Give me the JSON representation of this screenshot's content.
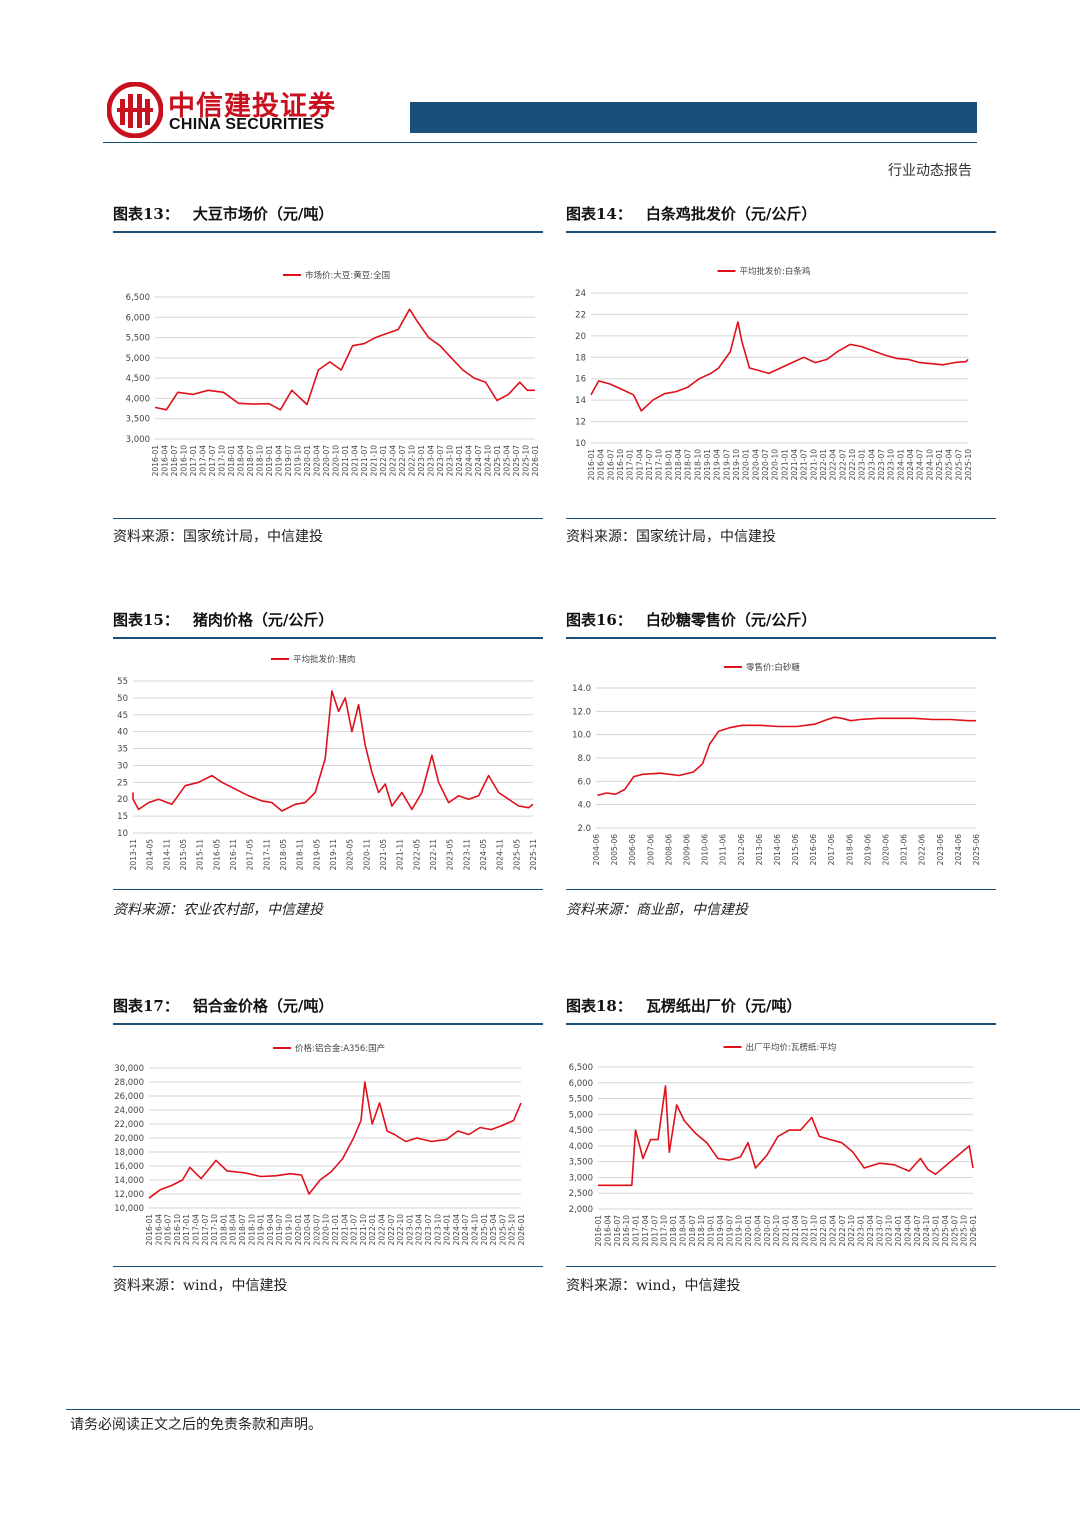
{
  "header": {
    "brand_cn": "中信建投证券",
    "brand_en": "CHINA SECURITIES",
    "report_type": "行业动态报告"
  },
  "colors": {
    "brand_red": "#c8101e",
    "brand_blue": "#1a4f7a",
    "series_red": "#e0101a"
  },
  "panels": [
    {
      "label": "图表13：",
      "title": "大豆市场价（元/吨）",
      "source": "资料来源：国家统计局，中信建投"
    },
    {
      "label": "图表14：",
      "title": "白条鸡批发价（元/公斤）",
      "source": "资料来源：国家统计局，中信建投"
    },
    {
      "label": "图表15：",
      "title": "猪肉价格（元/公斤）",
      "source": "资料来源：农业农村部，中信建投"
    },
    {
      "label": "图表16：",
      "title": "白砂糖零售价（元/公斤）",
      "source": "资料来源：商业部，中信建投"
    },
    {
      "label": "图表17：",
      "title": "铝合金价格（元/吨）",
      "source": "资料来源：wind，中信建投"
    },
    {
      "label": "图表18：",
      "title": "瓦楞纸出厂价（元/吨）",
      "source": "资料来源：wind，中信建投"
    }
  ],
  "chart_data": [
    {
      "type": "line",
      "title": "大豆市场价（元/吨）",
      "series": [
        {
          "name": "市场价:大豆:黄豆:全国",
          "x": [
            2016.0,
            2016.3,
            2016.6,
            2017.0,
            2017.4,
            2017.8,
            2018.2,
            2018.6,
            2019.0,
            2019.3,
            2019.6,
            2020.0,
            2020.3,
            2020.6,
            2020.9,
            2021.2,
            2021.5,
            2021.8,
            2022.1,
            2022.4,
            2022.7,
            2022.9,
            2023.2,
            2023.5,
            2023.8,
            2024.1,
            2024.4,
            2024.7,
            2025.0,
            2025.3,
            2025.6,
            2025.8,
            2026.0
          ],
          "values": [
            3780,
            3720,
            4150,
            4100,
            4200,
            4150,
            3880,
            3860,
            3870,
            3720,
            4200,
            3850,
            4700,
            4900,
            4700,
            5300,
            5350,
            5500,
            5600,
            5700,
            6200,
            5900,
            5500,
            5300,
            5000,
            4700,
            4500,
            4400,
            3950,
            4100,
            4400,
            4200,
            4200
          ]
        }
      ],
      "ylim": [
        3000,
        6500
      ],
      "yticks": [
        "3,000",
        "3,500",
        "4,000",
        "4,500",
        "5,000",
        "5,500",
        "6,000",
        "6,500"
      ],
      "categories": [
        "2016-01",
        "2016-04",
        "2016-07",
        "2016-10",
        "2017-01",
        "2017-04",
        "2017-07",
        "2017-10",
        "2018-01",
        "2018-04",
        "2018-07",
        "2018-10",
        "2019-01",
        "2019-04",
        "2019-07",
        "2019-10",
        "2020-01",
        "2020-04",
        "2020-07",
        "2020-10",
        "2021-01",
        "2021-04",
        "2021-07",
        "2021-10",
        "2022-01",
        "2022-04",
        "2022-07",
        "2022-10",
        "2023-01",
        "2023-04",
        "2023-07",
        "2023-10",
        "2024-01",
        "2024-04",
        "2024-07",
        "2024-10",
        "2025-01",
        "2025-04",
        "2025-07",
        "2025-10",
        "2026-01"
      ]
    },
    {
      "type": "line",
      "title": "白条鸡批发价（元/公斤）",
      "series": [
        {
          "name": "平均批发价:白条鸡",
          "x": [
            2016.0,
            2016.2,
            2016.5,
            2016.8,
            2017.1,
            2017.3,
            2017.6,
            2017.9,
            2018.2,
            2018.5,
            2018.8,
            2019.1,
            2019.3,
            2019.6,
            2019.8,
            2019.9,
            2020.1,
            2020.3,
            2020.6,
            2020.9,
            2021.2,
            2021.5,
            2021.8,
            2022.1,
            2022.4,
            2022.7,
            2023.0,
            2023.3,
            2023.6,
            2023.9,
            2024.2,
            2024.5,
            2024.8,
            2025.1,
            2025.4,
            2025.7,
            2026.0
          ],
          "values": [
            14.5,
            15.8,
            15.5,
            15.0,
            14.5,
            13.0,
            14.0,
            14.6,
            14.8,
            15.2,
            16.0,
            16.5,
            17.0,
            18.5,
            21.3,
            19.5,
            17.0,
            16.8,
            16.5,
            17.0,
            17.5,
            18.0,
            17.5,
            17.8,
            18.6,
            19.2,
            19.0,
            18.6,
            18.2,
            17.9,
            17.8,
            17.5,
            17.4,
            17.3,
            17.5,
            17.6,
            17.8
          ]
        }
      ],
      "ylim": [
        10,
        24
      ],
      "yticks": [
        "10",
        "12",
        "14",
        "16",
        "18",
        "20",
        "22",
        "24"
      ],
      "categories": [
        "2016-01",
        "2016-04",
        "2016-07",
        "2016-10",
        "2017-01",
        "2017-04",
        "2017-07",
        "2017-10",
        "2018-01",
        "2018-04",
        "2018-07",
        "2018-10",
        "2019-01",
        "2019-04",
        "2019-07",
        "2019-10",
        "2020-01",
        "2020-04",
        "2020-07",
        "2020-10",
        "2021-01",
        "2021-04",
        "2021-07",
        "2021-10",
        "2022-01",
        "2022-04",
        "2022-07",
        "2022-10",
        "2023-01",
        "2023-04",
        "2023-07",
        "2023-10",
        "2024-01",
        "2024-04",
        "2024-07",
        "2024-10",
        "2025-01",
        "2025-04",
        "2025-07",
        "2025-10"
      ]
    },
    {
      "type": "line",
      "title": "猪肉价格（元/公斤）",
      "series": [
        {
          "name": "平均批发价:猪肉",
          "x": [
            2013.4,
            2013.7,
            2014.0,
            2014.3,
            2014.6,
            2015.0,
            2015.4,
            2015.8,
            2016.2,
            2016.5,
            2016.9,
            2017.3,
            2017.7,
            2018.0,
            2018.3,
            2018.7,
            2019.0,
            2019.3,
            2019.6,
            2019.8,
            2020.0,
            2020.2,
            2020.4,
            2020.6,
            2020.8,
            2021.0,
            2021.2,
            2021.4,
            2021.6,
            2021.9,
            2022.2,
            2022.5,
            2022.8,
            2023.0,
            2023.3,
            2023.6,
            2023.9,
            2024.2,
            2024.5,
            2024.8,
            2025.1,
            2025.4,
            2025.7,
            2025.9
          ],
          "values": [
            22.0,
            20.0,
            17.0,
            19.0,
            20.0,
            18.5,
            24.0,
            25.0,
            27.0,
            25.0,
            23.0,
            21.0,
            19.5,
            19.0,
            16.5,
            18.5,
            19.0,
            22.0,
            32.0,
            52.0,
            46.0,
            50.0,
            40.0,
            48.0,
            36.0,
            28.0,
            22.0,
            24.5,
            18.0,
            22.0,
            17.0,
            22.0,
            33.0,
            25.0,
            19.0,
            21.0,
            20.0,
            21.0,
            27.0,
            22.0,
            20.0,
            18.0,
            17.5,
            18.5
          ]
        }
      ],
      "ylim": [
        10,
        55
      ],
      "yticks": [
        "10",
        "15",
        "20",
        "25",
        "30",
        "35",
        "40",
        "45",
        "50",
        "55"
      ],
      "categories": [
        "2013-11",
        "2014-05",
        "2014-11",
        "2015-05",
        "2015-11",
        "2016-05",
        "2016-11",
        "2017-05",
        "2017-11",
        "2018-05",
        "2018-11",
        "2019-05",
        "2019-11",
        "2020-05",
        "2020-11",
        "2021-05",
        "2021-11",
        "2022-05",
        "2022-11",
        "2023-05",
        "2023-11",
        "2024-05",
        "2024-11",
        "2025-05",
        "2025-11"
      ]
    },
    {
      "type": "line",
      "title": "白砂糖零售价（元/公斤）",
      "series": [
        {
          "name": "零售价:白砂糖",
          "x": [
            2004.5,
            2005.0,
            2005.5,
            2006.0,
            2006.5,
            2007.0,
            2008.0,
            2009.0,
            2009.8,
            2010.3,
            2010.7,
            2011.2,
            2011.8,
            2012.5,
            2013.5,
            2014.5,
            2015.5,
            2016.5,
            2017.2,
            2017.6,
            2018.0,
            2018.5,
            2019.0,
            2020.0,
            2021.0,
            2022.0,
            2023.0,
            2024.0,
            2025.0,
            2025.9
          ],
          "values": [
            4.8,
            5.0,
            4.9,
            5.3,
            6.4,
            6.6,
            6.7,
            6.5,
            6.8,
            7.5,
            9.2,
            10.3,
            10.6,
            10.8,
            10.8,
            10.7,
            10.7,
            10.9,
            11.3,
            11.5,
            11.4,
            11.2,
            11.3,
            11.4,
            11.4,
            11.4,
            11.3,
            11.3,
            11.2,
            11.2
          ]
        }
      ],
      "ylim": [
        2.0,
        14.0
      ],
      "yticks": [
        "2.0",
        "4.0",
        "6.0",
        "8.0",
        "10.0",
        "12.0",
        "14.0"
      ],
      "categories": [
        "2004-06",
        "2005-06",
        "2006-06",
        "2007-06",
        "2008-06",
        "2009-06",
        "2010-06",
        "2011-06",
        "2012-06",
        "2013-06",
        "2014-06",
        "2015-06",
        "2016-06",
        "2017-06",
        "2018-06",
        "2019-06",
        "2020-06",
        "2021-06",
        "2022-06",
        "2023-06",
        "2024-06",
        "2025-06"
      ]
    },
    {
      "type": "line",
      "title": "铝合金价格（元/吨）",
      "series": [
        {
          "name": "价格:铝合金:A356:国产",
          "x": [
            2016.0,
            2016.3,
            2016.6,
            2016.9,
            2017.1,
            2017.4,
            2017.8,
            2018.1,
            2018.6,
            2019.0,
            2019.4,
            2019.8,
            2020.1,
            2020.3,
            2020.6,
            2020.9,
            2021.2,
            2021.5,
            2021.7,
            2021.8,
            2022.0,
            2022.2,
            2022.4,
            2022.6,
            2022.9,
            2023.2,
            2023.6,
            2024.0,
            2024.3,
            2024.6,
            2024.9,
            2025.2,
            2025.5,
            2025.8,
            2026.0
          ],
          "values": [
            11400,
            12600,
            13200,
            14000,
            15800,
            14200,
            16800,
            15300,
            15000,
            14500,
            14600,
            14900,
            14700,
            12000,
            14000,
            15200,
            17000,
            20000,
            22500,
            28000,
            22000,
            25000,
            21000,
            20500,
            19500,
            20000,
            19500,
            19800,
            21000,
            20500,
            21500,
            21200,
            21800,
            22500,
            25000
          ]
        }
      ],
      "ylim": [
        10000,
        30000
      ],
      "yticks": [
        "10,000",
        "12,000",
        "14,000",
        "16,000",
        "18,000",
        "20,000",
        "22,000",
        "24,000",
        "26,000",
        "28,000",
        "30,000"
      ],
      "categories": [
        "2016-01",
        "2016-04",
        "2016-07",
        "2016-10",
        "2017-01",
        "2017-04",
        "2017-07",
        "2017-10",
        "2018-01",
        "2018-04",
        "2018-07",
        "2018-10",
        "2019-01",
        "2019-04",
        "2019-07",
        "2019-10",
        "2020-01",
        "2020-04",
        "2020-07",
        "2020-10",
        "2021-01",
        "2021-04",
        "2021-07",
        "2021-10",
        "2022-01",
        "2022-04",
        "2022-07",
        "2022-10",
        "2023-01",
        "2023-04",
        "2023-07",
        "2023-10",
        "2024-01",
        "2024-04",
        "2024-07",
        "2024-10",
        "2025-01",
        "2025-04",
        "2025-07",
        "2025-10",
        "2026-01"
      ]
    },
    {
      "type": "line",
      "title": "瓦楞纸出厂价（元/吨）",
      "series": [
        {
          "name": "出厂平均价:瓦楞纸:平均",
          "x": [
            2016.0,
            2016.6,
            2016.9,
            2017.0,
            2017.2,
            2017.4,
            2017.6,
            2017.8,
            2017.9,
            2018.1,
            2018.3,
            2018.6,
            2018.9,
            2019.2,
            2019.5,
            2019.8,
            2020.0,
            2020.2,
            2020.5,
            2020.8,
            2021.1,
            2021.4,
            2021.7,
            2021.9,
            2022.2,
            2022.5,
            2022.8,
            2023.1,
            2023.5,
            2023.9,
            2024.3,
            2024.6,
            2024.8,
            2025.0,
            2025.3,
            2025.6,
            2025.9,
            2026.0
          ],
          "values": [
            2750,
            2750,
            2750,
            4500,
            3600,
            4200,
            4200,
            5900,
            3800,
            5300,
            4800,
            4400,
            4100,
            3600,
            3550,
            3650,
            4100,
            3300,
            3700,
            4300,
            4500,
            4500,
            4900,
            4300,
            4200,
            4100,
            3800,
            3300,
            3450,
            3400,
            3200,
            3600,
            3250,
            3100,
            3400,
            3700,
            4000,
            3300
          ]
        }
      ],
      "ylim": [
        2000,
        6500
      ],
      "yticks": [
        "2,000",
        "2,500",
        "3,000",
        "3,500",
        "4,000",
        "4,500",
        "5,000",
        "5,500",
        "6,000",
        "6,500"
      ],
      "categories": [
        "2016-01",
        "2016-04",
        "2016-07",
        "2016-10",
        "2017-01",
        "2017-04",
        "2017-07",
        "2017-10",
        "2018-01",
        "2018-04",
        "2018-07",
        "2018-10",
        "2019-01",
        "2019-04",
        "2019-07",
        "2019-10",
        "2020-01",
        "2020-04",
        "2020-07",
        "2020-10",
        "2021-01",
        "2021-04",
        "2021-07",
        "2021-10",
        "2022-01",
        "2022-04",
        "2022-07",
        "2022-10",
        "2023-01",
        "2023-04",
        "2023-07",
        "2023-10",
        "2024-01",
        "2024-04",
        "2024-07",
        "2024-10",
        "2025-01",
        "2025-04",
        "2025-07",
        "2025-10",
        "2026-01"
      ]
    }
  ],
  "footer": {
    "disclaimer": "请务必阅读正文之后的免责条款和声明。"
  }
}
